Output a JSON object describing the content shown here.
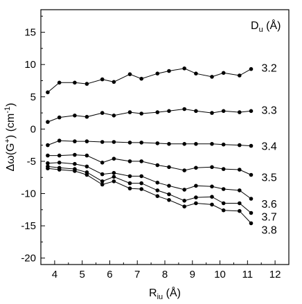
{
  "chart_data": {
    "type": "line",
    "xlabel": "R",
    "xlabel_sub": "iu",
    "xlabel_unit": " (Å)",
    "ylabel": "Δω(G⁺) (cm⁻¹)",
    "ylabel_pre": "Δω(G",
    "ylabel_sup1": "+",
    "ylabel_mid": ") (cm",
    "ylabel_sup2": "-1",
    "ylabel_post": ")",
    "legend_title": "D",
    "legend_title_sub": "u",
    "legend_title_unit": " (Å)",
    "xlim": [
      3.5,
      12.5
    ],
    "ylim": [
      -21,
      18.5
    ],
    "xticks": [
      4,
      5,
      6,
      7,
      8,
      9,
      10,
      11,
      12
    ],
    "yticks": [
      -20,
      -15,
      -10,
      -5,
      0,
      5,
      10,
      15
    ],
    "x": [
      3.75,
      4.17,
      4.73,
      5.17,
      5.73,
      6.15,
      6.73,
      7.15,
      7.73,
      8.15,
      8.71,
      9.13,
      9.71,
      10.13,
      10.71,
      11.13
    ],
    "series": [
      {
        "name": "3.2",
        "values": [
          5.7,
          7.2,
          7.2,
          7.0,
          7.7,
          7.3,
          8.5,
          7.8,
          8.6,
          9.0,
          9.4,
          8.6,
          8.1,
          8.7,
          8.3,
          9.3
        ]
      },
      {
        "name": "3.3",
        "values": [
          1.1,
          1.8,
          2.1,
          1.9,
          2.5,
          2.1,
          2.6,
          2.4,
          2.6,
          2.8,
          3.1,
          2.8,
          2.5,
          2.8,
          2.6,
          2.8
        ]
      },
      {
        "name": "3.4",
        "values": [
          -2.5,
          -1.8,
          -1.9,
          -1.9,
          -2.0,
          -2.0,
          -2.1,
          -2.1,
          -2.2,
          -2.3,
          -2.3,
          -2.3,
          -2.3,
          -2.4,
          -2.5,
          -2.6
        ]
      },
      {
        "name": "3.5",
        "values": [
          -4.1,
          -4.1,
          -4.0,
          -4.1,
          -5.2,
          -4.6,
          -5.0,
          -5.0,
          -5.6,
          -5.9,
          -6.4,
          -6.0,
          -5.9,
          -6.2,
          -6.3,
          -7.1
        ]
      },
      {
        "name": "3.6",
        "values": [
          -5.3,
          -5.2,
          -5.4,
          -5.8,
          -7.0,
          -6.8,
          -7.3,
          -7.3,
          -8.3,
          -8.8,
          -9.4,
          -8.8,
          -8.9,
          -9.3,
          -9.5,
          -10.8
        ]
      },
      {
        "name": "3.7",
        "values": [
          -5.8,
          -6.0,
          -6.2,
          -6.7,
          -8.1,
          -7.4,
          -8.4,
          -8.4,
          -9.5,
          -10.1,
          -11.1,
          -10.6,
          -10.5,
          -11.5,
          -11.5,
          -13.0
        ]
      },
      {
        "name": "3.8",
        "values": [
          -6.1,
          -6.3,
          -6.5,
          -7.1,
          -8.6,
          -8.1,
          -9.2,
          -9.3,
          -10.4,
          -11.0,
          -12.0,
          -11.5,
          -11.7,
          -12.6,
          -12.7,
          -14.6
        ]
      }
    ],
    "grid": false,
    "legend": "series labels at right end of each line"
  }
}
